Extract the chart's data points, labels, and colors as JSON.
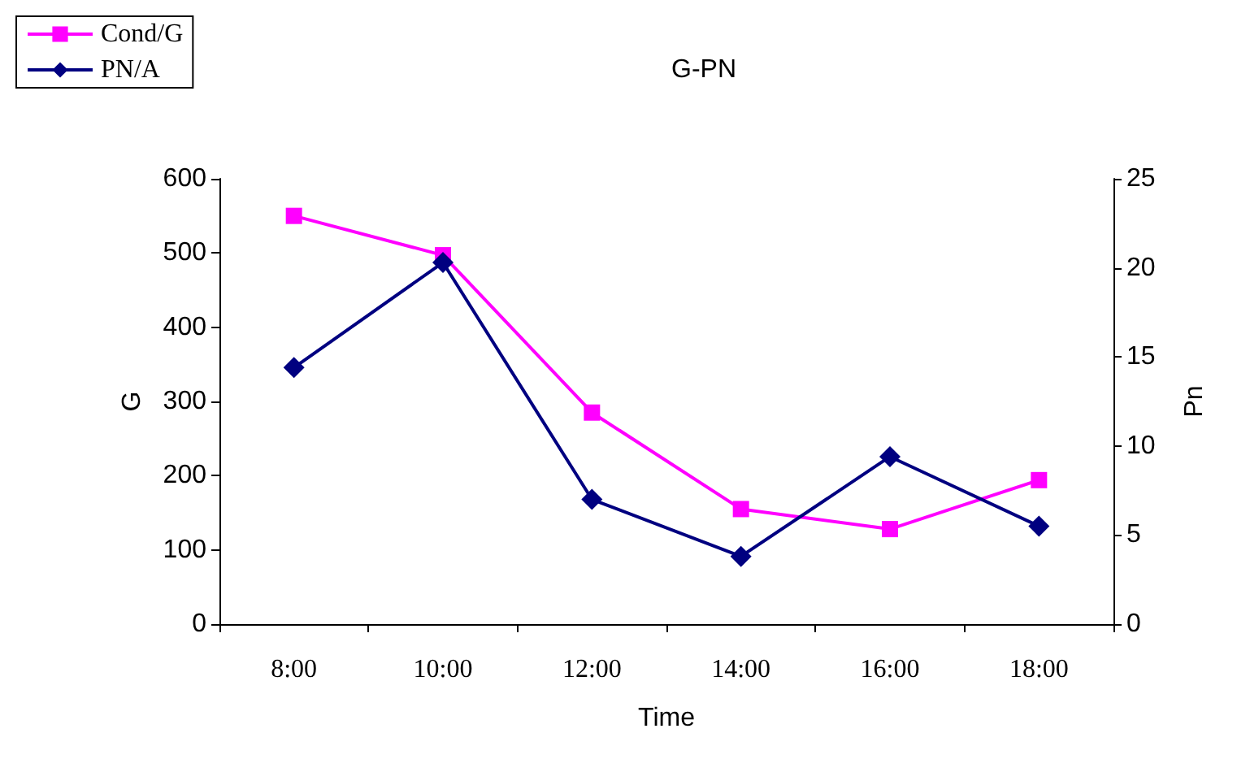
{
  "chart_data": {
    "type": "line",
    "title": "G-PN",
    "xlabel": "Time",
    "ylabel": "G",
    "y2label": "Pn",
    "categories": [
      "8:00",
      "10:00",
      "12:00",
      "14:00",
      "16:00",
      "18:00"
    ],
    "series": [
      {
        "name": "Cond/G",
        "color": "#ff00ff",
        "marker": "square",
        "values": [
          550,
          497,
          285,
          155,
          128,
          194
        ]
      },
      {
        "name": "PN/A",
        "color": "#000080",
        "marker": "diamond",
        "axis": "y2",
        "values": [
          14.4,
          20.3,
          7.0,
          3.8,
          9.4,
          5.5
        ]
      }
    ],
    "ylim": [
      0,
      600
    ],
    "yticks": [
      0,
      100,
      200,
      300,
      400,
      500,
      600
    ],
    "y2lim": [
      0,
      25
    ],
    "y2ticks": [
      0,
      5,
      10,
      15,
      20,
      25
    ],
    "grid": false,
    "legend": "top left"
  }
}
